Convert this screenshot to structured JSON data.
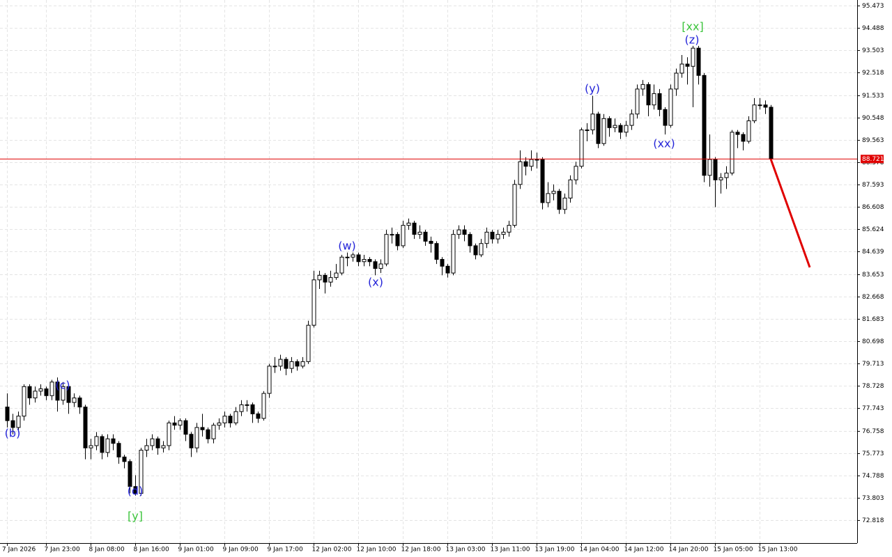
{
  "chart_data": {
    "type": "candlestick",
    "categories": [
      "7 Jan 2026",
      null,
      null,
      null,
      null,
      null,
      null,
      "7 Jan 23:00",
      null,
      null,
      null,
      null,
      null,
      null,
      null,
      "8 Jan 08:00",
      null,
      null,
      null,
      null,
      null,
      null,
      null,
      "8 Jan 16:00",
      null,
      null,
      null,
      null,
      null,
      null,
      null,
      "9 Jan 01:00",
      null,
      null,
      null,
      null,
      null,
      null,
      null,
      "9 Jan 09:00",
      null,
      null,
      null,
      null,
      null,
      null,
      null,
      "9 Jan 17:00",
      null,
      null,
      null,
      null,
      null,
      null,
      null,
      "12 Jan 02:00",
      null,
      null,
      null,
      null,
      null,
      null,
      null,
      "12 Jan 10:00",
      null,
      null,
      null,
      null,
      null,
      null,
      null,
      "12 Jan 18:00",
      null,
      null,
      null,
      null,
      null,
      null,
      null,
      "13 Jan 03:00",
      null,
      null,
      null,
      null,
      null,
      null,
      null,
      "13 Jan 11:00",
      null,
      null,
      null,
      null,
      null,
      null,
      null,
      "13 Jan 19:00",
      null,
      null,
      null,
      null,
      null,
      null,
      null,
      "14 Jan 04:00",
      null,
      null,
      null,
      null,
      null,
      null,
      null,
      "14 Jan 12:00",
      null,
      null,
      null,
      null,
      null,
      null,
      null,
      "14 Jan 20:00",
      null,
      null,
      null,
      null,
      null,
      null,
      null,
      "15 Jan 05:00",
      null,
      null,
      null,
      null,
      null,
      null,
      null,
      "15 Jan 13:00",
      null,
      null
    ],
    "open": [
      77.8,
      77.2,
      76.9,
      77.4,
      78.7,
      78.2,
      78.5,
      78.6,
      78.3,
      78.9,
      78.1,
      78.7,
      78.0,
      78.2,
      77.8,
      76.0,
      76.1,
      76.5,
      75.8,
      76.4,
      76.2,
      75.6,
      75.4,
      74.3,
      74.0,
      75.9,
      76.1,
      76.4,
      76.0,
      76.1,
      77.1,
      77.0,
      77.2,
      76.6,
      76.0,
      76.9,
      76.8,
      76.4,
      77.0,
      77.1,
      77.4,
      77.1,
      77.6,
      77.9,
      77.9,
      77.5,
      77.3,
      78.4,
      79.6,
      79.6,
      79.9,
      79.5,
      79.8,
      79.6,
      79.8,
      81.4,
      83.4,
      83.6,
      83.3,
      83.5,
      83.7,
      84.4,
      84.4,
      84.5,
      84.2,
      84.3,
      84.2,
      83.9,
      84.1,
      85.4,
      85.4,
      84.9,
      85.8,
      85.9,
      85.4,
      85.5,
      85.1,
      85.0,
      84.3,
      84.0,
      83.7,
      85.4,
      85.6,
      85.4,
      84.9,
      84.5,
      85.0,
      85.5,
      85.2,
      85.4,
      85.5,
      85.8,
      87.6,
      88.6,
      88.4,
      88.7,
      88.7,
      86.8,
      87.2,
      87.3,
      86.5,
      87.0,
      87.8,
      88.4,
      90.0,
      90.0,
      90.7,
      89.4,
      90.5,
      90.1,
      90.2,
      89.9,
      90.2,
      90.7,
      91.8,
      92.0,
      91.1,
      91.6,
      90.9,
      90.2,
      91.8,
      92.5,
      92.9,
      92.8,
      93.6,
      92.4,
      88.0,
      88.7,
      87.8,
      87.9,
      88.1,
      89.9,
      89.8,
      89.5,
      90.4,
      91.1,
      91.1,
      91.0
    ],
    "high": [
      78.4,
      77.5,
      77.6,
      78.8,
      78.8,
      78.7,
      78.8,
      78.7,
      79.0,
      79.1,
      78.9,
      78.8,
      78.4,
      78.3,
      77.9,
      76.4,
      76.7,
      76.6,
      76.6,
      76.6,
      76.3,
      75.7,
      75.5,
      74.8,
      76.0,
      76.4,
      76.6,
      76.5,
      76.3,
      77.2,
      77.4,
      77.3,
      77.3,
      76.7,
      77.1,
      77.5,
      76.9,
      77.1,
      77.3,
      77.6,
      77.5,
      77.8,
      78.1,
      78.1,
      78.0,
      77.6,
      78.5,
      79.7,
      80.0,
      80.1,
      80.0,
      80.0,
      79.9,
      80.0,
      81.6,
      83.8,
      83.8,
      83.7,
      83.8,
      84.1,
      84.5,
      84.6,
      84.6,
      84.6,
      84.5,
      84.4,
      84.3,
      84.3,
      85.6,
      85.7,
      85.5,
      86.0,
      86.1,
      86.0,
      85.8,
      85.6,
      85.3,
      85.1,
      84.4,
      84.1,
      85.6,
      85.8,
      85.8,
      85.5,
      85.0,
      85.2,
      85.7,
      85.6,
      85.6,
      85.7,
      86.0,
      87.8,
      89.1,
      88.8,
      89.1,
      89.0,
      88.8,
      87.7,
      87.6,
      87.4,
      87.2,
      88.0,
      88.6,
      90.1,
      90.3,
      91.5,
      90.8,
      90.7,
      90.6,
      90.5,
      90.3,
      90.4,
      90.9,
      92.0,
      92.2,
      92.1,
      92.0,
      91.8,
      91.0,
      92.0,
      92.7,
      93.3,
      93.2,
      93.7,
      93.7,
      92.5,
      89.8,
      88.8,
      88.1,
      88.4,
      90.0,
      90.0,
      89.9,
      90.6,
      91.4,
      91.4,
      91.3,
      91.1
    ],
    "low": [
      76.9,
      76.6,
      76.7,
      77.2,
      77.9,
      78.0,
      78.3,
      78.1,
      78.1,
      77.6,
      77.9,
      77.5,
      77.8,
      77.5,
      75.5,
      75.5,
      75.9,
      75.5,
      75.6,
      75.9,
      75.3,
      75.1,
      74.0,
      73.9,
      73.9,
      75.6,
      75.9,
      75.7,
      75.8,
      75.9,
      76.8,
      76.8,
      76.3,
      75.6,
      75.8,
      76.5,
      76.2,
      76.2,
      76.8,
      76.9,
      76.9,
      77.0,
      77.4,
      77.6,
      77.1,
      77.1,
      77.2,
      78.2,
      79.3,
      79.4,
      79.2,
      79.3,
      79.4,
      79.5,
      79.7,
      81.3,
      83.0,
      82.8,
      83.1,
      83.4,
      83.6,
      84.0,
      84.2,
      84.0,
      84.0,
      84.0,
      83.6,
      83.7,
      84.0,
      85.0,
      84.7,
      84.8,
      85.6,
      85.2,
      85.2,
      84.9,
      84.6,
      84.1,
      83.6,
      83.5,
      83.6,
      85.2,
      85.1,
      84.6,
      84.3,
      84.4,
      84.8,
      85.0,
      85.0,
      85.2,
      85.3,
      85.7,
      87.4,
      88.0,
      88.2,
      88.3,
      86.5,
      86.6,
      86.9,
      86.3,
      86.3,
      86.8,
      87.6,
      88.3,
      89.5,
      89.8,
      89.2,
      89.3,
      89.7,
      89.9,
      89.6,
      89.7,
      90.0,
      90.5,
      91.5,
      90.6,
      90.9,
      90.6,
      89.8,
      90.1,
      91.5,
      92.3,
      92.0,
      91.0,
      92.0,
      87.7,
      87.5,
      86.6,
      87.2,
      87.4,
      88.0,
      89.2,
      89.1,
      89.4,
      90.3,
      90.9,
      90.7,
      88.6
    ],
    "close": [
      77.2,
      76.9,
      77.4,
      78.7,
      78.2,
      78.5,
      78.6,
      78.3,
      78.9,
      78.1,
      78.7,
      78.0,
      78.2,
      77.8,
      76.0,
      76.1,
      76.5,
      75.8,
      76.4,
      76.2,
      75.6,
      75.4,
      74.3,
      74.0,
      75.9,
      76.1,
      76.4,
      76.0,
      76.1,
      77.1,
      77.0,
      77.2,
      76.6,
      76.0,
      76.9,
      76.8,
      76.4,
      77.0,
      77.1,
      77.4,
      77.1,
      77.6,
      77.9,
      77.9,
      77.5,
      77.3,
      78.4,
      79.6,
      79.6,
      79.9,
      79.5,
      79.8,
      79.6,
      79.8,
      81.4,
      83.4,
      83.6,
      83.3,
      83.5,
      83.7,
      84.4,
      84.4,
      84.5,
      84.2,
      84.3,
      84.2,
      83.9,
      84.1,
      85.4,
      85.4,
      84.9,
      85.8,
      85.9,
      85.4,
      85.5,
      85.1,
      85.0,
      84.3,
      84.0,
      83.7,
      85.4,
      85.6,
      85.4,
      84.9,
      84.5,
      85.0,
      85.5,
      85.2,
      85.4,
      85.5,
      85.8,
      87.6,
      88.6,
      88.4,
      88.7,
      88.7,
      86.8,
      87.2,
      87.3,
      86.5,
      87.0,
      87.8,
      88.4,
      90.0,
      90.0,
      90.7,
      89.4,
      90.5,
      90.1,
      90.2,
      89.9,
      90.2,
      90.7,
      91.8,
      92.0,
      91.1,
      91.6,
      90.9,
      90.2,
      91.8,
      92.5,
      92.9,
      92.8,
      93.6,
      92.4,
      88.0,
      88.7,
      87.8,
      87.9,
      88.1,
      89.9,
      89.8,
      89.5,
      90.4,
      91.1,
      91.1,
      91.0,
      88.721
    ],
    "up_color": "#ffffff",
    "down_color": "#000000",
    "ylim": [
      71.81,
      95.72
    ],
    "yticks": [
      72.818,
      73.803,
      74.788,
      75.773,
      76.758,
      77.743,
      78.728,
      79.713,
      80.698,
      81.683,
      82.668,
      83.653,
      84.639,
      85.624,
      86.608,
      87.593,
      88.578,
      89.563,
      90.548,
      91.533,
      92.518,
      93.503,
      94.488,
      95.473
    ],
    "grid": true,
    "price_line": {
      "value": 88.721,
      "color": "#e00000"
    },
    "forecast": {
      "color": "#e00000",
      "values": [
        88.721,
        83.95
      ]
    },
    "annotations": [
      {
        "text": "(b)",
        "color": "#2424d8"
      },
      {
        "text": "(c)",
        "color": "#2424d8"
      },
      {
        "text": "(d)",
        "color": "#2424d8"
      },
      {
        "text": "[y]",
        "color": "#3cc43c"
      },
      {
        "text": "(w)",
        "color": "#2424d8"
      },
      {
        "text": "(x)",
        "color": "#2424d8"
      },
      {
        "text": "(y)",
        "color": "#2424d8"
      },
      {
        "text": "(xx)",
        "color": "#2424d8"
      },
      {
        "text": "(z)",
        "color": "#2424d8"
      },
      {
        "text": "[xx]",
        "color": "#3cc43c"
      }
    ]
  }
}
